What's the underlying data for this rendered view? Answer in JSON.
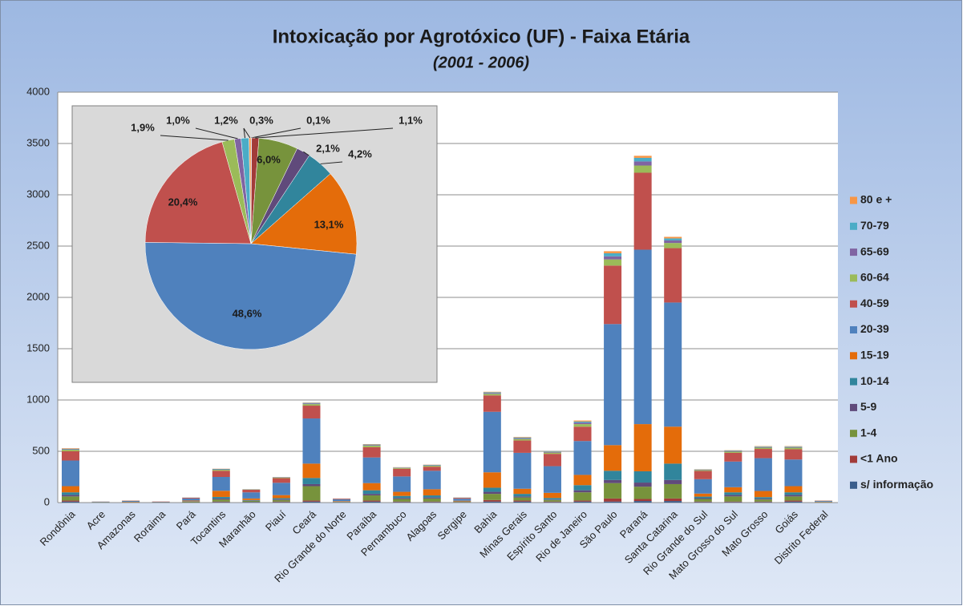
{
  "chart_data": [
    {
      "type": "bar",
      "title": "Intoxicação por Agrotóxico (UF) - Faixa Etária",
      "subtitle": "(2001 - 2006)",
      "stacked": true,
      "grid": true,
      "legend": "right",
      "categories": [
        "Rondônia",
        "Acre",
        "Amazonas",
        "Roraima",
        "Pará",
        "Tocantins",
        "Maranhão",
        "Piauí",
        "Ceará",
        "Rio Grande do Norte",
        "Paraíba",
        "Pernambuco",
        "Alagoas",
        "Sergipe",
        "Bahia",
        "Minas Gerais",
        "Espírito Santo",
        "Rio de Janeiro",
        "São Paulo",
        "Paraná",
        "Santa Catarina",
        "Rio Grande do Sul",
        "Mato Grosso do Sul",
        "Mato Grosso",
        "Goiás",
        "Distrito Federal"
      ],
      "ylim": [
        0,
        4000
      ],
      "yticks": [
        0,
        500,
        1000,
        1500,
        2000,
        2500,
        3000,
        3500,
        4000
      ],
      "series": [
        {
          "name": "s/ informação",
          "color": "#3B5E8C",
          "values": [
            10,
            0,
            0,
            0,
            2,
            5,
            5,
            5,
            10,
            1,
            10,
            5,
            5,
            1,
            10,
            10,
            5,
            10,
            10,
            15,
            15,
            5,
            5,
            5,
            10,
            1
          ]
        },
        {
          "name": "<1 Ano",
          "color": "#A23B39",
          "values": [
            10,
            0,
            1,
            0,
            1,
            5,
            2,
            5,
            10,
            1,
            10,
            5,
            5,
            1,
            15,
            10,
            5,
            10,
            30,
            20,
            25,
            5,
            5,
            5,
            10,
            1
          ]
        },
        {
          "name": "1-4",
          "color": "#77933C",
          "values": [
            40,
            2,
            2,
            1,
            5,
            20,
            10,
            15,
            140,
            3,
            50,
            25,
            30,
            4,
            60,
            30,
            15,
            80,
            150,
            120,
            140,
            25,
            50,
            20,
            40,
            2
          ]
        },
        {
          "name": "5-9",
          "color": "#604A7B",
          "values": [
            15,
            1,
            1,
            0,
            2,
            10,
            3,
            8,
            20,
            2,
            15,
            10,
            10,
            2,
            20,
            10,
            5,
            20,
            30,
            40,
            40,
            8,
            15,
            8,
            15,
            1
          ]
        },
        {
          "name": "10-14",
          "color": "#31859C",
          "values": [
            25,
            1,
            1,
            1,
            3,
            15,
            5,
            10,
            60,
            2,
            35,
            20,
            20,
            3,
            40,
            25,
            15,
            50,
            90,
            110,
            160,
            15,
            25,
            15,
            25,
            1
          ]
        },
        {
          "name": "15-19",
          "color": "#E46C0A",
          "values": [
            60,
            2,
            3,
            2,
            7,
            60,
            15,
            30,
            140,
            5,
            70,
            40,
            60,
            7,
            150,
            50,
            50,
            100,
            250,
            460,
            360,
            30,
            50,
            60,
            60,
            3
          ]
        },
        {
          "name": "20-39",
          "color": "#4F81BD",
          "values": [
            250,
            3,
            8,
            4,
            20,
            135,
            60,
            120,
            440,
            18,
            250,
            150,
            180,
            20,
            590,
            350,
            260,
            330,
            1180,
            1700,
            1210,
            140,
            250,
            320,
            260,
            7
          ]
        },
        {
          "name": "40-59",
          "color": "#C0504D",
          "values": [
            90,
            1,
            3,
            2,
            7,
            60,
            25,
            45,
            125,
            6,
            100,
            75,
            40,
            8,
            160,
            120,
            120,
            140,
            570,
            750,
            530,
            80,
            85,
            90,
            100,
            3
          ]
        },
        {
          "name": "60-64",
          "color": "#9BBB59",
          "values": [
            15,
            0,
            1,
            0,
            1,
            10,
            3,
            6,
            15,
            1,
            15,
            8,
            10,
            2,
            15,
            15,
            12,
            25,
            60,
            70,
            50,
            8,
            12,
            12,
            15,
            1
          ]
        },
        {
          "name": "65-69",
          "color": "#8064A2",
          "values": [
            5,
            0,
            0,
            0,
            1,
            4,
            1,
            3,
            7,
            1,
            6,
            3,
            4,
            1,
            8,
            8,
            6,
            15,
            30,
            40,
            25,
            4,
            6,
            6,
            6,
            0
          ]
        },
        {
          "name": "70-79",
          "color": "#4BACC6",
          "values": [
            5,
            0,
            0,
            0,
            1,
            4,
            1,
            2,
            5,
            0,
            5,
            2,
            4,
            1,
            7,
            7,
            5,
            10,
            30,
            35,
            20,
            3,
            4,
            5,
            5,
            0
          ]
        },
        {
          "name": "80 e +",
          "color": "#F79646",
          "values": [
            5,
            0,
            0,
            0,
            0,
            2,
            0,
            1,
            3,
            0,
            4,
            2,
            2,
            0,
            5,
            5,
            2,
            10,
            20,
            20,
            15,
            2,
            3,
            4,
            4,
            0
          ]
        }
      ]
    },
    {
      "type": "pie",
      "values": [
        0.1,
        1.1,
        6.0,
        2.1,
        4.2,
        13.1,
        48.6,
        20.4,
        1.9,
        1.0,
        1.2,
        0.3
      ],
      "value_labels": [
        "0,1%",
        "1,1%",
        "6,0%",
        "2,1%",
        "4,2%",
        "13,1%",
        "48,6%",
        "20,4%",
        "1,9%",
        "1,0%",
        "1,2%",
        "0,3%"
      ],
      "colors": [
        "#3B5E8C",
        "#A23B39",
        "#77933C",
        "#604A7B",
        "#31859C",
        "#E46C0A",
        "#4F81BD",
        "#C0504D",
        "#9BBB59",
        "#8064A2",
        "#4BACC6",
        "#F79646"
      ]
    }
  ]
}
